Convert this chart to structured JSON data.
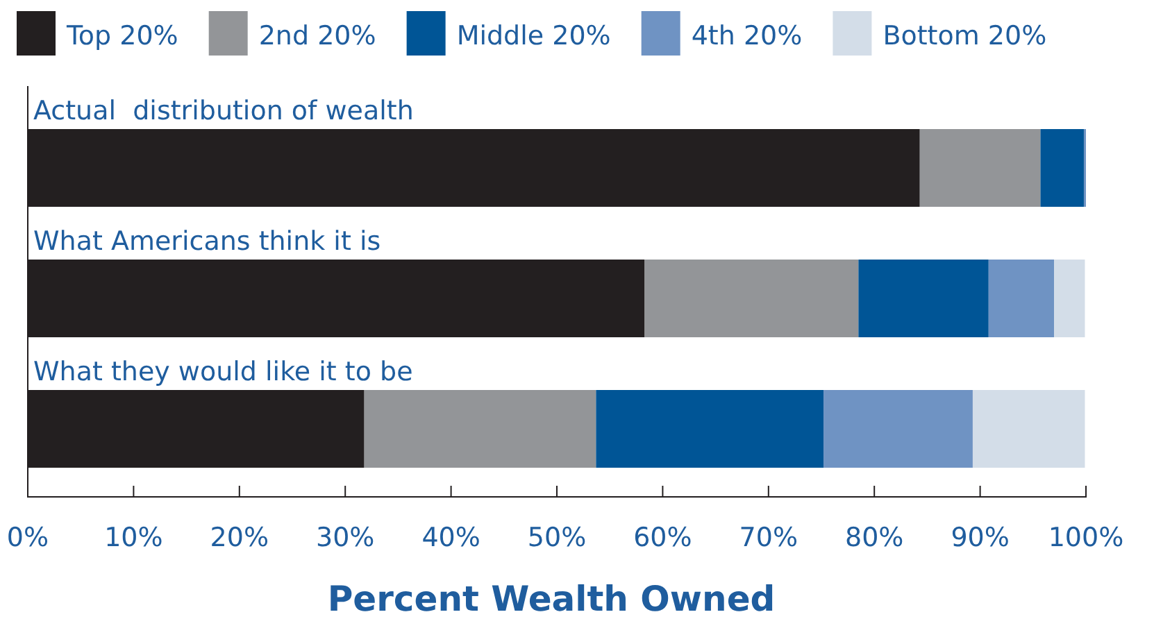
{
  "chart_data": {
    "type": "bar",
    "orientation": "horizontal",
    "stacked": true,
    "xlabel": "Percent Wealth Owned",
    "categories": [
      "Actual  distribution of wealth",
      "What Americans think it is",
      "What they would like it to be"
    ],
    "series": [
      {
        "name": "Top 20%",
        "color": "#231f20",
        "values": [
          84.3,
          58.3,
          31.8
        ]
      },
      {
        "name": "2nd 20%",
        "color": "#939598",
        "values": [
          11.4,
          20.2,
          21.9
        ]
      },
      {
        "name": "Middle 20%",
        "color": "#005596",
        "values": [
          4.1,
          12.3,
          21.5
        ]
      },
      {
        "name": "4th 20%",
        "color": "#6f93c3",
        "values": [
          0.2,
          6.2,
          14.1
        ]
      },
      {
        "name": "Bottom 20%",
        "color": "#d3dde8",
        "values": [
          null,
          2.9,
          10.6
        ]
      }
    ],
    "xlim": [
      0,
      100
    ],
    "xticks": [
      {
        "value": 0,
        "label": "0%"
      },
      {
        "value": 10,
        "label": "10%"
      },
      {
        "value": 20,
        "label": "20%"
      },
      {
        "value": 30,
        "label": "30%"
      },
      {
        "value": 40,
        "label": "40%"
      },
      {
        "value": 50,
        "label": "50%"
      },
      {
        "value": 60,
        "label": "60%"
      },
      {
        "value": 70,
        "label": "70%"
      },
      {
        "value": 80,
        "label": "80%"
      },
      {
        "value": 90,
        "label": "90%"
      },
      {
        "value": 100,
        "label": "100%"
      }
    ],
    "legend": "top",
    "grid": false
  }
}
